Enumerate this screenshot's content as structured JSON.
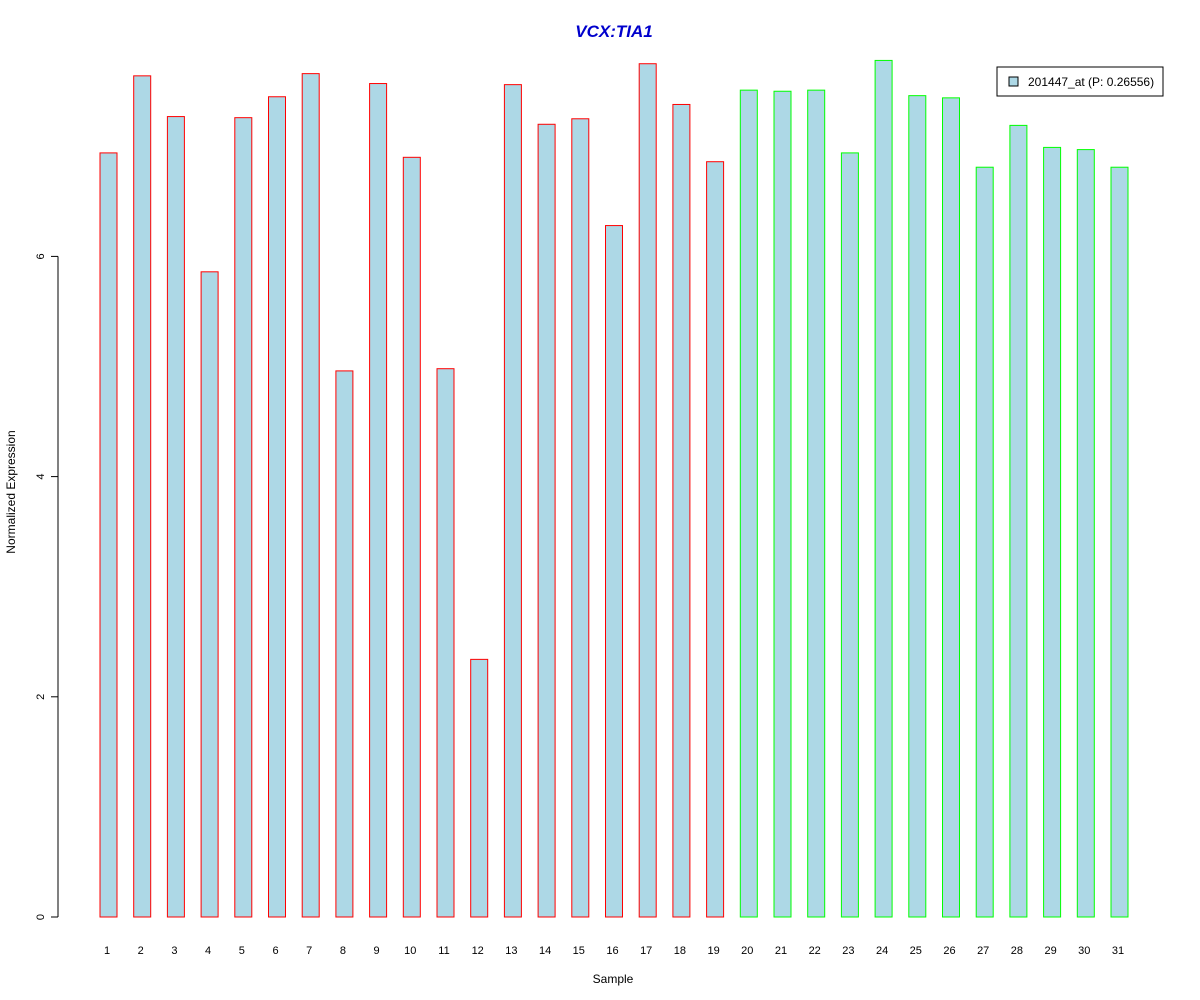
{
  "chart_data": {
    "type": "bar",
    "title": "VCX:TIA1",
    "xlabel": "Sample",
    "ylabel": "Normalized Expression",
    "categories": [
      "1",
      "2",
      "3",
      "4",
      "5",
      "6",
      "7",
      "8",
      "9",
      "10",
      "11",
      "12",
      "13",
      "14",
      "15",
      "16",
      "17",
      "18",
      "19",
      "20",
      "21",
      "22",
      "23",
      "24",
      "25",
      "26",
      "27",
      "28",
      "29",
      "30",
      "31"
    ],
    "values": [
      6.94,
      7.64,
      7.27,
      5.86,
      7.26,
      7.45,
      7.66,
      4.96,
      7.57,
      6.9,
      4.98,
      2.34,
      7.56,
      7.2,
      7.25,
      6.28,
      7.75,
      7.38,
      6.86,
      7.51,
      7.5,
      7.51,
      6.94,
      7.78,
      7.46,
      7.44,
      6.81,
      7.19,
      6.99,
      6.97,
      6.81
    ],
    "groups": [
      "red",
      "red",
      "red",
      "red",
      "red",
      "red",
      "red",
      "red",
      "red",
      "red",
      "red",
      "red",
      "red",
      "red",
      "red",
      "red",
      "red",
      "red",
      "red",
      "green",
      "green",
      "green",
      "green",
      "green",
      "green",
      "green",
      "green",
      "green",
      "green",
      "green",
      "green"
    ],
    "yticks": [
      0,
      2,
      4,
      6
    ],
    "ylim": [
      0,
      7.8
    ],
    "grid": false,
    "legend": {
      "entries": [
        "201447_at (P: 0.26556)"
      ],
      "placement": "top-right"
    },
    "colors": {
      "bar_fill": "#add8e6",
      "border_red": "#ff0000",
      "border_green": "#00ff00",
      "title": "#0000cc",
      "axis": "#000000"
    }
  }
}
